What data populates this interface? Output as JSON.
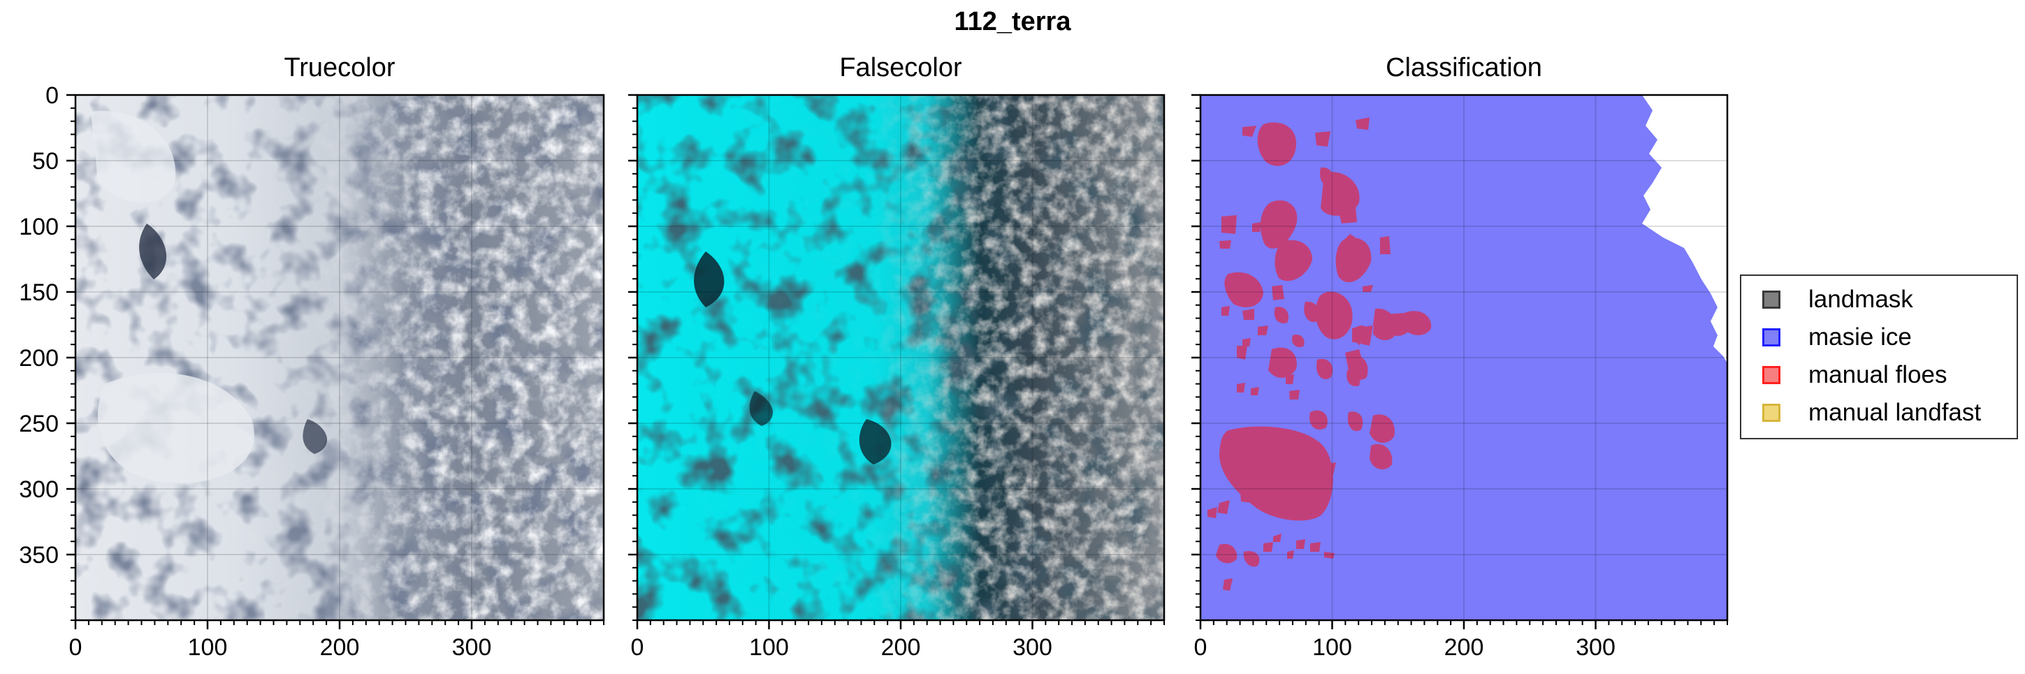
{
  "figure": {
    "suptitle": "112_terra"
  },
  "chart_data": [
    {
      "type": "image",
      "title": "Truecolor",
      "xlabel": "",
      "ylabel": "",
      "xlim": [
        0,
        400
      ],
      "ylim": [
        400,
        0
      ],
      "xticks": [
        0,
        100,
        200,
        300
      ],
      "yticks": [
        0,
        50,
        100,
        150,
        200,
        250,
        300,
        350
      ],
      "grid": true,
      "content": "satellite truecolor image of sea ice floes and clouds"
    },
    {
      "type": "image",
      "title": "Falsecolor",
      "xlabel": "",
      "ylabel": "",
      "xlim": [
        0,
        400
      ],
      "ylim": [
        400,
        0
      ],
      "xticks": [
        0,
        100,
        200,
        300
      ],
      "yticks": [
        0,
        50,
        100,
        150,
        200,
        250,
        300,
        350
      ],
      "grid": true,
      "content": "satellite falsecolor image, ice shown in cyan"
    },
    {
      "type": "image",
      "title": "Classification",
      "xlabel": "",
      "ylabel": "",
      "xlim": [
        0,
        400
      ],
      "ylim": [
        400,
        0
      ],
      "xticks": [
        0,
        100,
        200,
        300
      ],
      "yticks": [
        0,
        50,
        100,
        150,
        200,
        250,
        300,
        350
      ],
      "grid": true,
      "legend": {
        "placement": "right",
        "entries": [
          {
            "label": "landmask",
            "color": "#808080",
            "edge": "#3a3a3a"
          },
          {
            "label": "masie ice",
            "color": "#7f7ff8",
            "edge": "#2020ff"
          },
          {
            "label": "manual floes",
            "color": "#f87f7f",
            "edge": "#ff2020"
          },
          {
            "label": "manual landfast",
            "color": "#f0d77a",
            "edge": "#d7b53a"
          }
        ]
      },
      "colors": {
        "masie_ice": "#7b7bfb",
        "manual_floes_overlay": "#c2407a",
        "open": "#ffffff"
      }
    }
  ]
}
